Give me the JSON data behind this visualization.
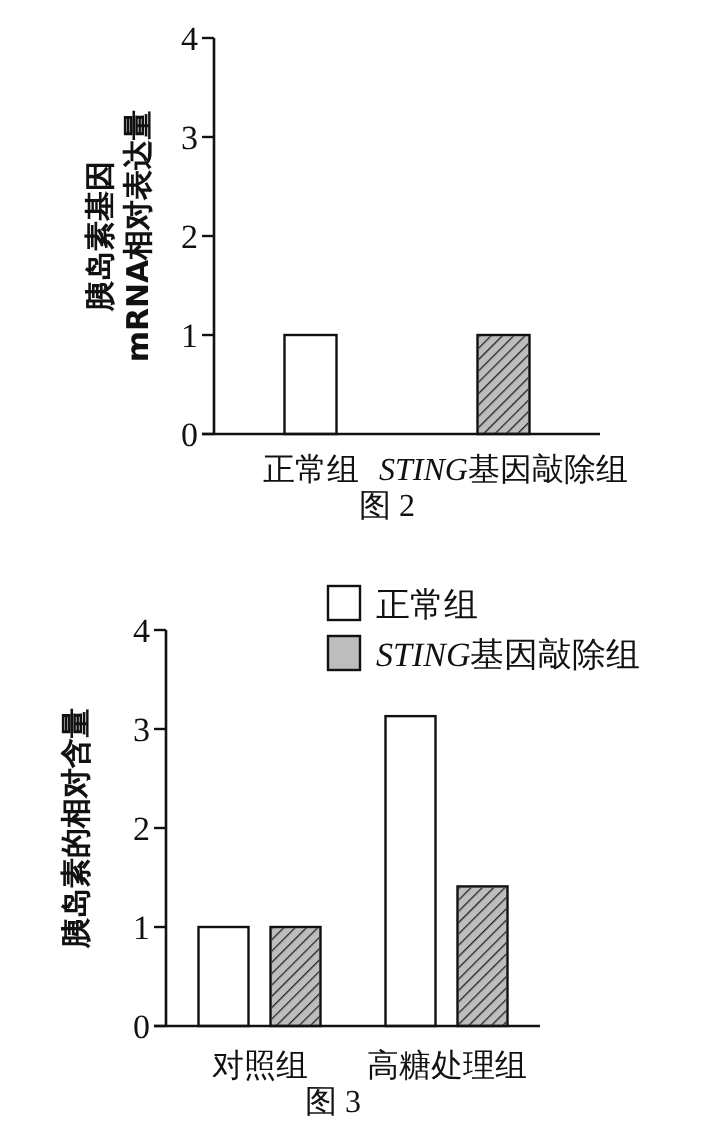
{
  "chart_data": [
    {
      "type": "bar",
      "title": "图 2",
      "ylabel": "胰岛素基因\nmRNA相对表达量",
      "categories": [
        "正常组",
        "STING基因敲除组"
      ],
      "values": [
        1,
        1
      ],
      "colors": [
        "#ffffff",
        "#bdbdbd"
      ],
      "ylim": [
        0,
        4
      ],
      "yticks": [
        0,
        1,
        2,
        3,
        4
      ],
      "grid": false,
      "legend": false
    },
    {
      "type": "bar",
      "title": "图 3",
      "ylabel": "胰岛素的相对含量",
      "categories": [
        "对照组",
        "高糖处理组"
      ],
      "series": [
        {
          "name": "正常组",
          "color": "#ffffff",
          "values": [
            1,
            3.13
          ]
        },
        {
          "name": "STING基因敲除组",
          "color": "#bdbdbd",
          "values": [
            1,
            1.41
          ]
        }
      ],
      "ylim": [
        0,
        4
      ],
      "yticks": [
        0,
        1,
        2,
        3,
        4
      ],
      "grid": false,
      "legend": "top right"
    }
  ]
}
